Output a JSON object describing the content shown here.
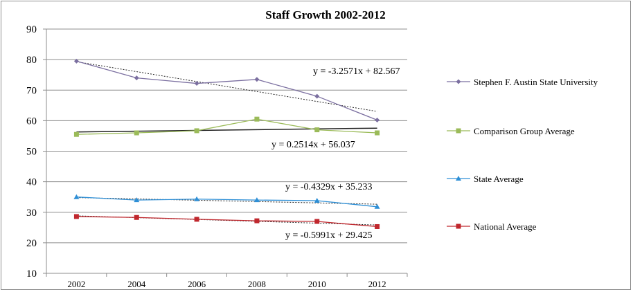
{
  "chart_data": {
    "type": "line",
    "title": "Staff Growth  2002-2012",
    "xlabel": "",
    "ylabel": "",
    "categories": [
      "2002",
      "2004",
      "2006",
      "2008",
      "2010",
      "2012"
    ],
    "ylim": [
      10,
      90
    ],
    "yticks": [
      "90",
      "80",
      "70",
      "60",
      "50",
      "40",
      "30",
      "20",
      "10"
    ],
    "grid": "horizontal",
    "legend": "right",
    "series": [
      {
        "name": "Stephen F. Austin State University",
        "values": [
          79.5,
          74.0,
          72.2,
          73.5,
          68.0,
          60.2
        ],
        "color": "#7b6fa0",
        "marker": "diamond",
        "trendline": {
          "slope": -3.2571,
          "intercept": 82.567,
          "label": "y = -3.2571x + 82.567"
        }
      },
      {
        "name": "Comparison Group Average",
        "values": [
          55.5,
          56.0,
          56.7,
          60.5,
          57.0,
          56.0
        ],
        "color": "#9bbb59",
        "marker": "square",
        "trendline": {
          "slope": 0.2514,
          "intercept": 56.037,
          "label": "y = 0.2514x + 56.037"
        }
      },
      {
        "name": "State Average",
        "values": [
          35.0,
          34.0,
          34.3,
          34.0,
          33.8,
          31.8
        ],
        "color": "#2e8fd6",
        "marker": "triangle",
        "trendline": {
          "slope": -0.4329,
          "intercept": 35.233,
          "label": "y = -0.4329x + 35.233"
        }
      },
      {
        "name": "National Average",
        "values": [
          28.6,
          28.3,
          27.7,
          27.2,
          27.0,
          25.3
        ],
        "color": "#c0272d",
        "marker": "square",
        "trendline": {
          "slope": -0.5991,
          "intercept": 29.425,
          "label": "y = -0.5991x + 29.425"
        }
      }
    ]
  }
}
